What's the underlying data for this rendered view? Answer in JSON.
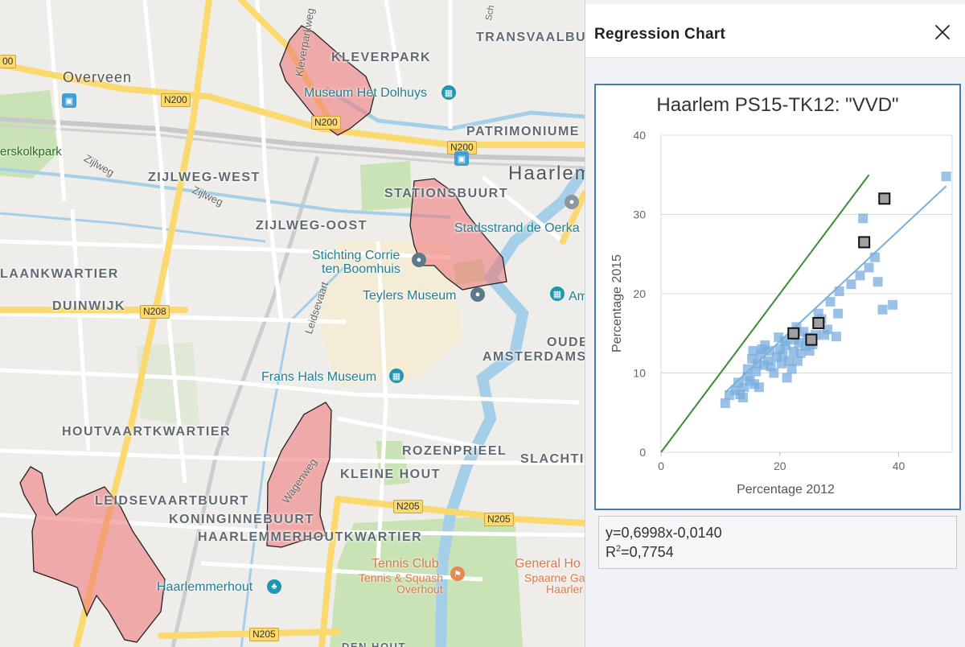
{
  "map": {
    "districts": [
      {
        "id": "kleverpark",
        "label": "KLEVERPARK"
      },
      {
        "id": "zijlweg-west",
        "label": "ZIJLWEG-WEST"
      },
      {
        "id": "stationsbuurt",
        "label": "STATIONSBUURT"
      },
      {
        "id": "zijlweg-oost",
        "label": "ZIJLWEG-OOST"
      },
      {
        "id": "laankwartier",
        "label": "LAANKWARTIER"
      },
      {
        "id": "duinwijk",
        "label": "DUINWIJK"
      },
      {
        "id": "patrimoniume",
        "label": "PATRIMONIUME"
      },
      {
        "id": "transvaalbu",
        "label": "TRANSVAALBU"
      },
      {
        "id": "oude",
        "label": "OUDE"
      },
      {
        "id": "amsterdams",
        "label": "AMSTERDAMS"
      },
      {
        "id": "houtvaartkwartier",
        "label": "HOUTVAARTKWARTIER"
      },
      {
        "id": "rozenprieel",
        "label": "ROZENPRIEEL"
      },
      {
        "id": "slachti",
        "label": "SLACHTI"
      },
      {
        "id": "kleine-hout",
        "label": "KLEINE HOUT"
      },
      {
        "id": "leidsevaartbuurt",
        "label": "LEIDSEVAARTBUURT"
      },
      {
        "id": "koninginnebuurt",
        "label": "KONINGINNEBUURT"
      },
      {
        "id": "haarlemmerhoutkwartier",
        "label": "HAARLEMMERHOUTKWARTIER"
      }
    ],
    "places": {
      "overveen": "Overveen",
      "haarlem": "Haarlem",
      "erskolkpark": "erskolkpark",
      "dolhuys": "Museum Het Dolhuys",
      "stadsstrand": "Stadsstrand de Oerka",
      "corrie1": "Stichting Corrie",
      "corrie2": "ten Boomhuis",
      "teylers": "Teylers Museum",
      "franshals": "Frans Hals Museum",
      "am": "Am",
      "haarlemmerhout": "Haarlemmerhout",
      "tennis1": "Tennis Club",
      "tennis2": "Tennis & Squash",
      "tennis3": "Overhout",
      "general1": "General Ho",
      "general2": "Spaarne Ga",
      "general3": "Haarler",
      "denhout": "DEN HOUT"
    },
    "streets": {
      "zijlweg1": "Zijlweg",
      "zijlweg2": "Zijlweg",
      "leidsevaart": "Leidsevaart",
      "wagenweg": "Wagenweg",
      "kleverparkweg": "Kleverparkweg",
      "sch": "Sch"
    },
    "roads": {
      "n200a": "N200",
      "n200b": "N200",
      "n200c": "N200",
      "n208": "N208",
      "n205a": "N205",
      "n205b": "N205",
      "n205c": "N205",
      "edge": "00"
    }
  },
  "panel": {
    "title": "Regression Chart",
    "close_icon": "close-icon",
    "equation": "y=0,6998x-0,0140",
    "r2_label": "R",
    "r2_sup": "2",
    "r2_value": "=0,7754"
  },
  "chart_data": {
    "type": "scatter",
    "title": "Haarlem PS15-TK12: \"VVD\"",
    "xlabel": "Percentage 2012",
    "ylabel": "Percentage 2015",
    "xlim": [
      0,
      49
    ],
    "ylim": [
      0,
      40
    ],
    "xticks": [
      0,
      20,
      40
    ],
    "yticks": [
      0,
      10,
      20,
      30,
      40
    ],
    "grid": "horizontal",
    "colors": {
      "points": "#7aaedd",
      "selected_fill": "#a0a0a0",
      "selected_stroke": "#111111",
      "regression": "#7ab0dd",
      "identity": "#3f8a3a"
    },
    "regression": {
      "slope": 0.6998,
      "intercept": -0.014,
      "x_range": [
        10.8,
        48
      ]
    },
    "identity_line": {
      "x_range": [
        0,
        35
      ]
    },
    "points": [
      [
        10.8,
        6.2
      ],
      [
        11.5,
        7.2
      ],
      [
        12.5,
        7.8
      ],
      [
        13,
        8.8
      ],
      [
        13.3,
        7.3
      ],
      [
        13.8,
        6.9
      ],
      [
        14,
        8.2
      ],
      [
        14.5,
        9.5
      ],
      [
        14.6,
        10.5
      ],
      [
        15,
        9
      ],
      [
        15.3,
        11.8
      ],
      [
        15.5,
        12.8
      ],
      [
        15.7,
        8.6
      ],
      [
        16,
        10.2
      ],
      [
        16.2,
        11.2
      ],
      [
        16.5,
        8.2
      ],
      [
        16.8,
        12.4
      ],
      [
        17,
        13
      ],
      [
        17.3,
        11
      ],
      [
        17.5,
        13.5
      ],
      [
        18,
        11.5
      ],
      [
        18.3,
        12.8
      ],
      [
        18.5,
        10.8
      ],
      [
        19,
        10
      ],
      [
        19.5,
        12
      ],
      [
        19.8,
        14.5
      ],
      [
        20,
        13
      ],
      [
        20.3,
        11.2
      ],
      [
        20.5,
        12.3
      ],
      [
        20.8,
        14
      ],
      [
        21,
        13.5
      ],
      [
        21.2,
        9.4
      ],
      [
        21.5,
        11.5
      ],
      [
        22,
        10.5
      ],
      [
        22.3,
        12.7
      ],
      [
        22.5,
        14.2
      ],
      [
        22.8,
        15.8
      ],
      [
        23,
        11.5
      ],
      [
        23.2,
        13.8
      ],
      [
        23.5,
        12.5
      ],
      [
        24,
        15.2
      ],
      [
        24.3,
        13.4
      ],
      [
        24.6,
        14.5
      ],
      [
        25,
        12.8
      ],
      [
        25.5,
        13.6
      ],
      [
        26,
        14.8
      ],
      [
        26.5,
        17.5
      ],
      [
        27,
        16.8
      ],
      [
        27.5,
        14.8
      ],
      [
        28,
        15.5
      ],
      [
        28.5,
        19
      ],
      [
        29.5,
        14.6
      ],
      [
        29.8,
        17.5
      ],
      [
        30,
        20.3
      ],
      [
        32,
        21.2
      ],
      [
        33.5,
        22.3
      ],
      [
        34,
        29.5
      ],
      [
        35,
        23.3
      ],
      [
        36,
        24.6
      ],
      [
        36.5,
        21.5
      ],
      [
        37.3,
        18
      ],
      [
        39,
        18.6
      ],
      [
        48,
        34.8
      ]
    ],
    "selected": [
      [
        22.3,
        15
      ],
      [
        25.3,
        14.2
      ],
      [
        26.5,
        16.3
      ],
      [
        34.2,
        26.5
      ],
      [
        37.6,
        32
      ]
    ]
  }
}
